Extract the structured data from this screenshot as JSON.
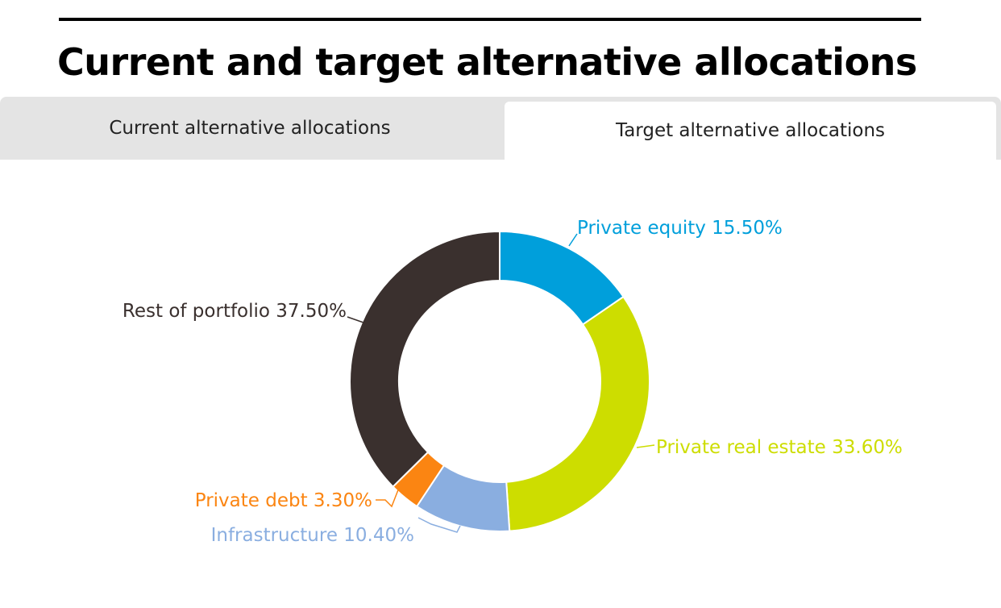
{
  "header": {
    "title": "Current and target alternative allocations"
  },
  "tabs": [
    {
      "label": "Current alternative allocations",
      "active": false
    },
    {
      "label": "Target alternative allocations",
      "active": true
    }
  ],
  "chart_data": {
    "type": "pie",
    "variant": "donut",
    "title": "",
    "slices": [
      {
        "name": "Private equity",
        "value": 15.5,
        "label": "Private equity 15.50%",
        "color": "#009fdb"
      },
      {
        "name": "Private real estate",
        "value": 33.6,
        "label": "Private real estate 33.60%",
        "color": "#cddd00"
      },
      {
        "name": "Infrastructure",
        "value": 10.4,
        "label": "Infrastructure 10.40%",
        "color": "#8aaee0"
      },
      {
        "name": "Private debt",
        "value": 3.3,
        "label": "Private debt 3.30%",
        "color": "#fb8512"
      },
      {
        "name": "Rest of portfolio",
        "value": 37.5,
        "label": "Rest of portfolio 37.50%",
        "color": "#3a302e"
      }
    ]
  }
}
